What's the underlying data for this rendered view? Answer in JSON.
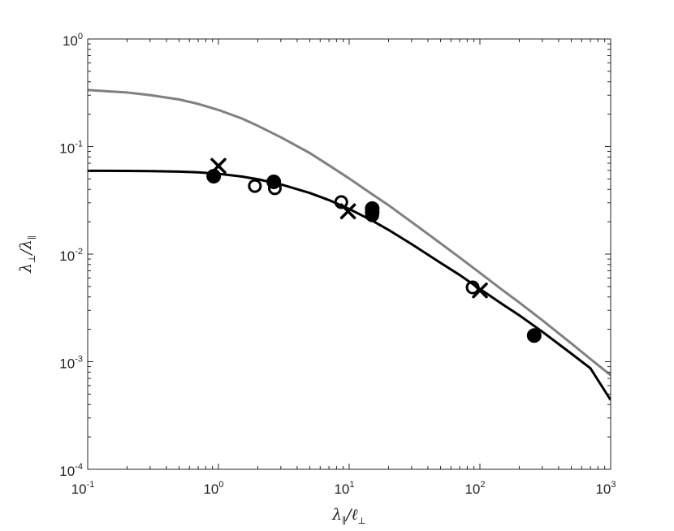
{
  "chart_data": {
    "type": "scatter",
    "title": "",
    "xlabel": {
      "base": "λ",
      "base_sub": "∥",
      "sep": "/",
      "den": "ℓ",
      "den_sub": "⊥"
    },
    "ylabel": {
      "base": "λ",
      "base_sub": "⊥",
      "sep": "/",
      "den": "λ",
      "den_sub": "∥"
    },
    "xscale": "log",
    "yscale": "log",
    "xlim": [
      0.1,
      1000
    ],
    "ylim": [
      0.0001,
      1
    ],
    "grid": false,
    "x_ticks": [
      {
        "value": 0.1,
        "base": "10",
        "exp": "-1"
      },
      {
        "value": 1,
        "base": "10",
        "exp": "0"
      },
      {
        "value": 10,
        "base": "10",
        "exp": "1"
      },
      {
        "value": 100,
        "base": "10",
        "exp": "2"
      },
      {
        "value": 1000,
        "base": "10",
        "exp": "3"
      }
    ],
    "y_ticks": [
      {
        "value": 0.0001,
        "base": "10",
        "exp": "-4"
      },
      {
        "value": 0.001,
        "base": "10",
        "exp": "-3"
      },
      {
        "value": 0.01,
        "base": "10",
        "exp": "-2"
      },
      {
        "value": 0.1,
        "base": "10",
        "exp": "-1"
      },
      {
        "value": 1,
        "base": "10",
        "exp": "0"
      }
    ],
    "series": [
      {
        "style": "line",
        "color": "#808080",
        "points": [
          [
            0.1,
            0.335
          ],
          [
            0.2,
            0.318
          ],
          [
            0.3,
            0.301
          ],
          [
            0.5,
            0.274
          ],
          [
            0.7,
            0.249
          ],
          [
            1,
            0.219
          ],
          [
            1.5,
            0.183
          ],
          [
            2,
            0.156
          ],
          [
            3,
            0.122
          ],
          [
            5,
            0.087
          ],
          [
            7,
            0.067
          ],
          [
            10,
            0.0505
          ],
          [
            15,
            0.036
          ],
          [
            20,
            0.0285
          ],
          [
            30,
            0.0199
          ],
          [
            50,
            0.0126
          ],
          [
            70,
            0.0093
          ],
          [
            100,
            0.0067
          ],
          [
            150,
            0.0046
          ],
          [
            200,
            0.00355
          ],
          [
            300,
            0.00243
          ],
          [
            500,
            0.00148
          ],
          [
            700,
            0.00106
          ],
          [
            1000,
            0.00075
          ]
        ]
      },
      {
        "style": "line",
        "color": "#000000",
        "points": [
          [
            0.1,
            0.0595
          ],
          [
            0.2,
            0.0594
          ],
          [
            0.3,
            0.0591
          ],
          [
            0.5,
            0.0585
          ],
          [
            0.7,
            0.0576
          ],
          [
            1,
            0.0558
          ],
          [
            1.5,
            0.0527
          ],
          [
            2,
            0.0497
          ],
          [
            3,
            0.0445
          ],
          [
            5,
            0.037
          ],
          [
            7,
            0.0318
          ],
          [
            10,
            0.0263
          ],
          [
            15,
            0.0205
          ],
          [
            20,
            0.0168
          ],
          [
            30,
            0.0124
          ],
          [
            50,
            0.0083
          ],
          [
            70,
            0.0064
          ],
          [
            100,
            0.00475
          ],
          [
            150,
            0.0034
          ],
          [
            200,
            0.0027
          ],
          [
            300,
            0.0019
          ],
          [
            500,
            0.00119
          ],
          [
            700,
            0.00087
          ],
          [
            1000,
            0.00044
          ]
        ]
      },
      {
        "style": "marker",
        "marker": "filled-circle",
        "color": "#000000",
        "points": [
          [
            0.92,
            0.053
          ],
          [
            2.65,
            0.047
          ],
          [
            15,
            0.0245
          ],
          [
            15,
            0.0265
          ],
          [
            260,
            0.00175
          ]
        ]
      },
      {
        "style": "marker",
        "marker": "open-circle",
        "color": "#000000",
        "points": [
          [
            1.9,
            0.043
          ],
          [
            2.7,
            0.041
          ],
          [
            8.7,
            0.0305
          ],
          [
            15,
            0.023
          ],
          [
            88,
            0.0049
          ]
        ]
      },
      {
        "style": "marker",
        "marker": "cross",
        "color": "#000000",
        "points": [
          [
            1,
            0.066
          ],
          [
            9.8,
            0.025
          ],
          [
            100,
            0.0046
          ]
        ]
      }
    ]
  }
}
